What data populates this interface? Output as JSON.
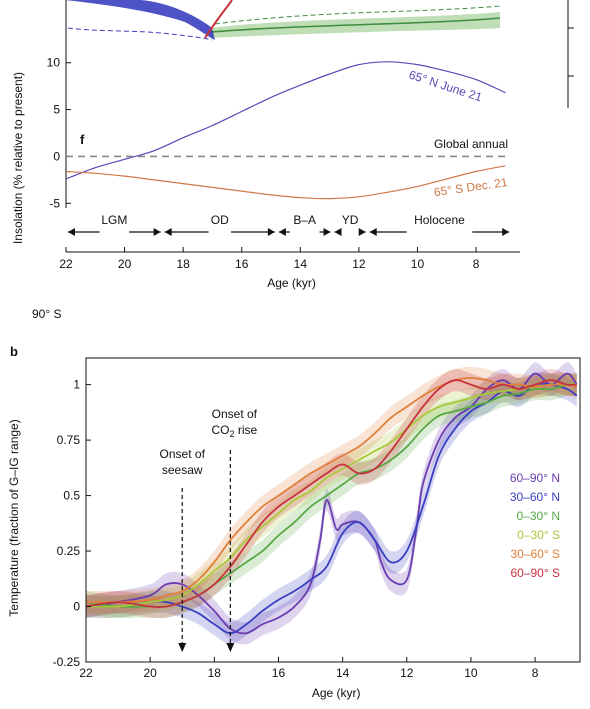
{
  "chart_data": [
    {
      "panel": "f",
      "type": "line",
      "xlabel": "Age (kyr)",
      "ylabel": "Insolation (% relative to present)",
      "xlim": [
        22,
        6.5
      ],
      "ylim": [
        -5.5,
        12
      ],
      "x_ticks": [
        22,
        20,
        18,
        16,
        14,
        12,
        10,
        8
      ],
      "y_ticks": [
        -5,
        0,
        5,
        10
      ],
      "series": [
        {
          "name": "65° N June 21",
          "color": "#5b49b8",
          "x": [
            22,
            21,
            20,
            19,
            18,
            17,
            16,
            15,
            14,
            13,
            12,
            11,
            10,
            9,
            8,
            7
          ],
          "y": [
            -2.4,
            -1.2,
            -0.3,
            0.6,
            2.0,
            3.3,
            4.8,
            6.3,
            7.6,
            8.8,
            9.8,
            10.1,
            9.8,
            9.1,
            8.2,
            6.8
          ]
        },
        {
          "name": "Global annual",
          "color": "#888888",
          "dashed": true,
          "x": [
            22,
            7
          ],
          "y": [
            0,
            0
          ]
        },
        {
          "name": "65° S Dec. 21",
          "color": "#d0784a",
          "x": [
            22,
            21,
            20,
            19,
            18,
            17,
            16,
            15,
            14,
            13,
            12,
            11,
            10,
            9,
            8,
            7
          ],
          "y": [
            -1.6,
            -1.8,
            -2.1,
            -2.5,
            -2.9,
            -3.3,
            -3.7,
            -4.1,
            -4.4,
            -4.5,
            -4.3,
            -3.8,
            -3.2,
            -2.4,
            -1.6,
            -1.0
          ]
        }
      ],
      "periods": [
        {
          "label": "LGM",
          "x0": 22,
          "x1": 18.7
        },
        {
          "label": "OD",
          "x0": 18.7,
          "x1": 14.8
        },
        {
          "label": "B–A",
          "x0": 14.8,
          "x1": 12.9
        },
        {
          "label": "YD",
          "x0": 12.9,
          "x1": 11.7
        },
        {
          "label": "Holocene",
          "x0": 11.7,
          "x1": 6.8
        }
      ]
    },
    {
      "panel": "b",
      "type": "line",
      "xlabel": "Age (kyr)",
      "ylabel": "Temperature (fraction of G–IG range)",
      "xlim": [
        22,
        6.6
      ],
      "ylim": [
        -0.25,
        1.12
      ],
      "x_ticks": [
        22,
        20,
        18,
        16,
        14,
        12,
        10,
        8
      ],
      "y_ticks": [
        -0.25,
        0,
        0.25,
        0.5,
        0.75,
        1
      ],
      "annotations": [
        {
          "text_lines": [
            "Onset of",
            "seesaw"
          ],
          "x": 19.0
        },
        {
          "text_lines": [
            "Onset of",
            "CO2 rise"
          ],
          "x": 17.5
        }
      ],
      "series": [
        {
          "name": "60–90° N",
          "color": "#6a3cb0",
          "x": [
            22,
            21,
            20,
            19.5,
            19,
            18.5,
            18,
            17.5,
            17,
            16.5,
            16,
            15.5,
            15,
            14.7,
            14.5,
            14.2,
            14,
            13.5,
            13,
            12.8,
            12.5,
            12,
            11.7,
            11.5,
            11,
            10.5,
            10,
            9.5,
            9,
            8.5,
            8,
            7.5,
            7,
            6.7
          ],
          "y": [
            0.0,
            0.02,
            0.05,
            0.1,
            0.1,
            0.05,
            -0.02,
            -0.1,
            -0.12,
            -0.08,
            -0.05,
            0.0,
            0.1,
            0.3,
            0.48,
            0.35,
            0.37,
            0.38,
            0.3,
            0.2,
            0.12,
            0.12,
            0.35,
            0.55,
            0.75,
            0.85,
            0.9,
            0.98,
            1.02,
            0.98,
            1.05,
            1.0,
            1.05,
            1.0
          ]
        },
        {
          "name": "30–60° N",
          "color": "#3a3ec0",
          "x": [
            22,
            21,
            20,
            19.5,
            19,
            18.5,
            18,
            17.5,
            17,
            16.5,
            16,
            15.5,
            15,
            14.5,
            14,
            13.5,
            13,
            12.5,
            12,
            11.5,
            11,
            10.5,
            10,
            9.5,
            9,
            8.5,
            8,
            7.5,
            7,
            6.7
          ],
          "y": [
            0.0,
            0.0,
            0.02,
            0.02,
            0.0,
            -0.03,
            -0.08,
            -0.12,
            -0.08,
            -0.02,
            0.03,
            0.07,
            0.12,
            0.18,
            0.33,
            0.38,
            0.3,
            0.2,
            0.25,
            0.45,
            0.68,
            0.8,
            0.88,
            0.92,
            0.97,
            0.95,
            1.0,
            1.0,
            0.98,
            0.95
          ]
        },
        {
          "name": "0–30° N",
          "color": "#58a844",
          "x": [
            22,
            21,
            20,
            19.5,
            19,
            18.5,
            18,
            17.5,
            17,
            16.5,
            16,
            15.5,
            15,
            14.5,
            14,
            13.5,
            13,
            12.5,
            12,
            11.5,
            11,
            10.5,
            10,
            9.5,
            9,
            8.5,
            8,
            7.5,
            7,
            6.7
          ],
          "y": [
            0.02,
            0.0,
            0.0,
            0.0,
            0.02,
            0.05,
            0.1,
            0.15,
            0.2,
            0.25,
            0.32,
            0.38,
            0.45,
            0.5,
            0.55,
            0.6,
            0.62,
            0.66,
            0.72,
            0.8,
            0.86,
            0.88,
            0.9,
            0.92,
            0.95,
            0.96,
            0.98,
            0.98,
            1.0,
            1.0
          ]
        },
        {
          "name": "0–30° S",
          "color": "#a8c838",
          "x": [
            22,
            21,
            20,
            19.5,
            19,
            18.5,
            18,
            17.5,
            17,
            16.5,
            16,
            15.5,
            15,
            14.5,
            14,
            13.5,
            13,
            12.5,
            12,
            11.5,
            11,
            10.5,
            10,
            9.5,
            9,
            8.5,
            8,
            7.5,
            7,
            6.7
          ],
          "y": [
            0.0,
            0.0,
            0.02,
            0.03,
            0.05,
            0.1,
            0.16,
            0.22,
            0.3,
            0.36,
            0.42,
            0.48,
            0.52,
            0.58,
            0.62,
            0.66,
            0.7,
            0.74,
            0.8,
            0.86,
            0.9,
            0.92,
            0.94,
            0.96,
            0.97,
            0.98,
            0.99,
            1.0,
            1.0,
            1.0
          ]
        },
        {
          "name": "30–60° S",
          "color": "#e0803a",
          "x": [
            22,
            21,
            20,
            19.5,
            19,
            18.5,
            18,
            17.5,
            17,
            16.5,
            16,
            15.5,
            15,
            14.5,
            14,
            13.5,
            13,
            12.5,
            12,
            11.5,
            11,
            10.5,
            10,
            9.5,
            9,
            8.5,
            8,
            7.5,
            7,
            6.7
          ],
          "y": [
            0.02,
            0.02,
            0.03,
            0.05,
            0.07,
            0.12,
            0.2,
            0.3,
            0.38,
            0.45,
            0.5,
            0.55,
            0.6,
            0.64,
            0.68,
            0.72,
            0.78,
            0.85,
            0.9,
            0.95,
            0.99,
            1.02,
            1.03,
            1.02,
            1.0,
            1.0,
            0.99,
            1.0,
            1.0,
            0.99
          ]
        },
        {
          "name": "60–90° S",
          "color": "#c8323c",
          "x": [
            22,
            21,
            20,
            19.5,
            19,
            18.5,
            18,
            17.5,
            17,
            16.5,
            16,
            15.5,
            15,
            14.5,
            14,
            13.5,
            13,
            12.5,
            12,
            11.5,
            11,
            10.5,
            10,
            9.5,
            9,
            8.5,
            8,
            7.5,
            7,
            6.7
          ],
          "y": [
            0.0,
            0.02,
            0.0,
            0.0,
            0.02,
            0.05,
            0.1,
            0.18,
            0.28,
            0.38,
            0.45,
            0.5,
            0.55,
            0.6,
            0.64,
            0.6,
            0.62,
            0.7,
            0.8,
            0.9,
            0.98,
            1.02,
            1.0,
            0.98,
            1.0,
            0.98,
            1.0,
            1.02,
            1.0,
            1.0
          ]
        }
      ]
    }
  ],
  "panel_letters": {
    "f": "f",
    "b": "b"
  },
  "fragment_label": "90° S"
}
